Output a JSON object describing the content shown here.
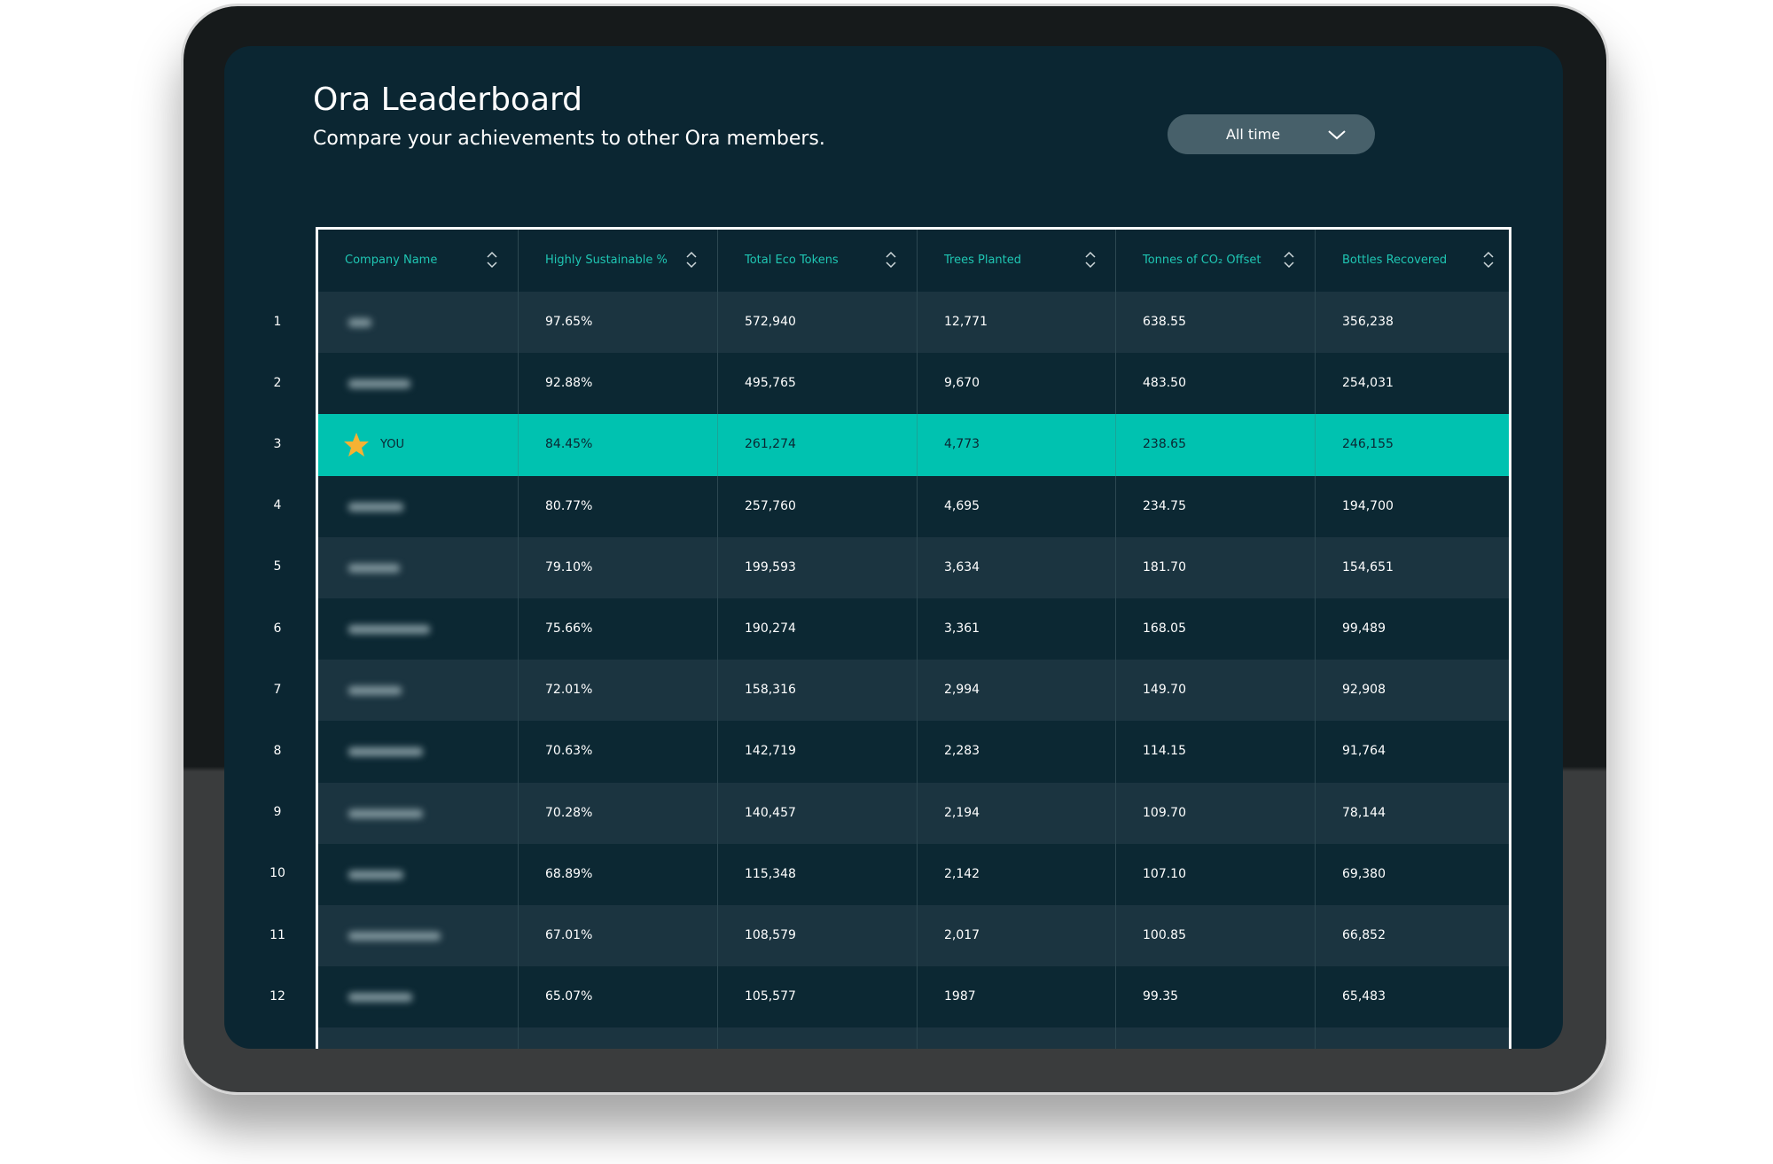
{
  "header": {
    "title": "Ora Leaderboard",
    "subtitle": "Compare your achievements to other Ora members."
  },
  "filter": {
    "label": "All time"
  },
  "table": {
    "columns": [
      "Company Name",
      "Highly Sustainable %",
      "Total Eco Tokens",
      "Trees Planted",
      "Tonnes of CO₂ Offset",
      "Bottles Recovered"
    ],
    "rows": [
      {
        "rank": "1",
        "cells": [
          "97.65%",
          "572,940",
          "12,771",
          "638.55",
          "356,238"
        ]
      },
      {
        "rank": "2",
        "cells": [
          "92.88%",
          "495,765",
          "9,670",
          "483.50",
          "254,031"
        ]
      },
      {
        "rank": "3",
        "name": "YOU",
        "highlight": true,
        "cells": [
          "84.45%",
          "261,274",
          "4,773",
          "238.65",
          "246,155"
        ]
      },
      {
        "rank": "4",
        "cells": [
          "80.77%",
          "257,760",
          "4,695",
          "234.75",
          "194,700"
        ]
      },
      {
        "rank": "5",
        "cells": [
          "79.10%",
          "199,593",
          "3,634",
          "181.70",
          "154,651"
        ]
      },
      {
        "rank": "6",
        "cells": [
          "75.66%",
          "190,274",
          "3,361",
          "168.05",
          "99,489"
        ]
      },
      {
        "rank": "7",
        "cells": [
          "72.01%",
          "158,316",
          "2,994",
          "149.70",
          "92,908"
        ]
      },
      {
        "rank": "8",
        "cells": [
          "70.63%",
          "142,719",
          "2,283",
          "114.15",
          "91,764"
        ]
      },
      {
        "rank": "9",
        "cells": [
          "70.28%",
          "140,457",
          "2,194",
          "109.70",
          "78,144"
        ]
      },
      {
        "rank": "10",
        "cells": [
          "68.89%",
          "115,348",
          "2,142",
          "107.10",
          "69,380"
        ]
      },
      {
        "rank": "11",
        "cells": [
          "67.01%",
          "108,579",
          "2,017",
          "100.85",
          "66,852"
        ]
      },
      {
        "rank": "12",
        "cells": [
          "65.07%",
          "105,577",
          "1987",
          "99.35",
          "65,483"
        ]
      }
    ]
  }
}
